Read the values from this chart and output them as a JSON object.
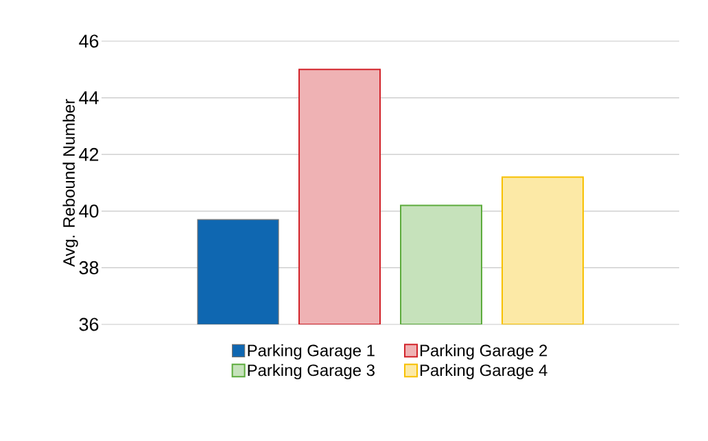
{
  "chart_data": {
    "type": "bar",
    "ylabel": "Avg. Rebound Number",
    "categories": [
      null
    ],
    "series": [
      {
        "name": "Parking Garage 1",
        "color": "#0f67b1",
        "values": [
          39.7
        ]
      },
      {
        "name": "Parking Garage 2",
        "color": "#d2232a",
        "values": [
          45.0
        ]
      },
      {
        "name": "Parking Garage 3",
        "color": "#5cab3c",
        "values": [
          40.2
        ]
      },
      {
        "name": "Parking Garage 4",
        "color": "#f7c000",
        "values": [
          41.2
        ]
      }
    ],
    "ylim": [
      36,
      46
    ],
    "yticks": [
      36,
      38,
      40,
      42,
      44,
      46
    ],
    "grid": "y",
    "legend": "bottom"
  }
}
